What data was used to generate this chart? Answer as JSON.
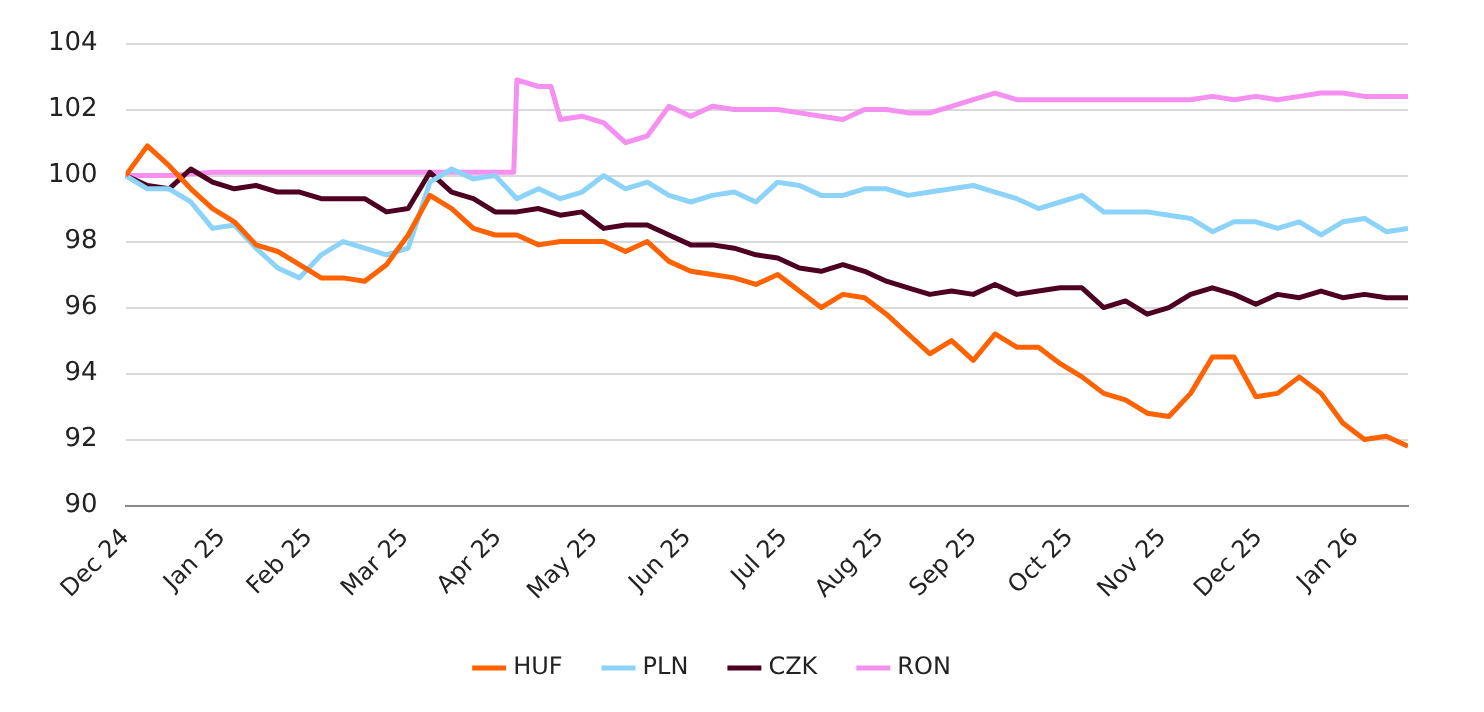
{
  "chart_data": {
    "type": "line",
    "x": [
      "2024-12-31",
      "2025-01-07",
      "2025-01-14",
      "2025-01-21",
      "2025-01-28",
      "2025-02-04",
      "2025-02-11",
      "2025-02-18",
      "2025-02-25",
      "2025-03-04",
      "2025-03-11",
      "2025-03-18",
      "2025-03-25",
      "2025-04-01",
      "2025-04-08",
      "2025-04-15",
      "2025-04-22",
      "2025-04-29",
      "2025-05-06",
      "2025-05-13",
      "2025-05-20",
      "2025-05-27",
      "2025-06-03",
      "2025-06-10",
      "2025-06-17",
      "2025-06-24",
      "2025-07-01",
      "2025-07-08",
      "2025-07-15",
      "2025-07-22",
      "2025-07-29",
      "2025-08-05",
      "2025-08-12",
      "2025-08-19",
      "2025-08-26",
      "2025-09-02",
      "2025-09-09",
      "2025-09-16",
      "2025-09-23",
      "2025-09-30",
      "2025-10-07",
      "2025-10-14",
      "2025-10-21",
      "2025-10-28",
      "2025-11-04",
      "2025-11-11",
      "2025-11-18",
      "2025-11-25",
      "2025-12-02",
      "2025-12-09",
      "2025-12-16",
      "2025-12-23",
      "2025-12-30",
      "2026-01-06",
      "2026-01-13",
      "2026-01-20",
      "2026-01-27",
      "2026-02-03",
      "2026-02-10",
      "2026-02-17"
    ],
    "series": [
      {
        "name": "HUF",
        "color": "#ff6200",
        "values": [
          100.0,
          100.9,
          100.3,
          99.6,
          99.0,
          98.6,
          97.9,
          97.7,
          97.3,
          96.9,
          96.9,
          96.8,
          97.3,
          98.2,
          99.4,
          99.0,
          98.4,
          98.2,
          98.2,
          97.9,
          98.0,
          98.0,
          98.0,
          97.7,
          98.0,
          97.4,
          97.1,
          97.0,
          96.9,
          96.7,
          97.0,
          96.5,
          96.0,
          96.4,
          96.3,
          95.8,
          95.2,
          94.6,
          95.0,
          94.4,
          95.2,
          94.8,
          94.8,
          94.3,
          93.9,
          93.4,
          93.2,
          92.8,
          92.7,
          93.4,
          94.5,
          94.5,
          93.3,
          93.4,
          93.9,
          93.4,
          92.5,
          92.0,
          92.1,
          91.8
        ]
      },
      {
        "name": "PLN",
        "color": "#8cd3fa",
        "values": [
          100.0,
          99.6,
          99.6,
          99.2,
          98.4,
          98.5,
          97.8,
          97.2,
          96.9,
          97.6,
          98.0,
          97.8,
          97.6,
          97.8,
          99.8,
          100.2,
          99.9,
          100.0,
          99.3,
          99.6,
          99.3,
          99.5,
          100.0,
          99.6,
          99.8,
          99.4,
          99.2,
          99.4,
          99.5,
          99.2,
          99.8,
          99.7,
          99.4,
          99.4,
          99.6,
          99.6,
          99.4,
          99.5,
          99.6,
          99.7,
          99.5,
          99.3,
          99.0,
          99.2,
          99.4,
          98.9,
          98.9,
          98.9,
          98.8,
          98.7,
          98.3,
          98.6,
          98.6,
          98.4,
          98.6,
          98.2,
          98.6,
          98.7,
          98.3,
          98.4
        ]
      },
      {
        "name": "CZK",
        "color": "#4d0020",
        "values": [
          100.0,
          99.7,
          99.6,
          100.2,
          99.8,
          99.6,
          99.7,
          99.5,
          99.5,
          99.3,
          99.3,
          99.3,
          98.9,
          99.0,
          100.1,
          99.5,
          99.3,
          98.9,
          98.9,
          99.0,
          98.8,
          98.9,
          98.4,
          98.5,
          98.5,
          98.2,
          97.9,
          97.9,
          97.8,
          97.6,
          97.5,
          97.2,
          97.1,
          97.3,
          97.1,
          96.8,
          96.6,
          96.4,
          96.5,
          96.4,
          96.7,
          96.4,
          96.5,
          96.6,
          96.6,
          96.0,
          96.2,
          95.8,
          96.0,
          96.4,
          96.6,
          96.4,
          96.1,
          96.4,
          96.3,
          96.5,
          96.3,
          96.4,
          96.3,
          96.3
        ]
      },
      {
        "name": "RON",
        "color": "#f58ff0",
        "x": [
          "2024-12-31",
          "2025-01-14",
          "2025-01-28",
          "2025-02-11",
          "2025-02-25",
          "2025-03-11",
          "2025-03-25",
          "2025-04-08",
          "2025-04-22",
          "2025-05-05",
          "2025-05-06",
          "2025-05-13",
          "2025-05-17",
          "2025-05-20",
          "2025-05-27",
          "2025-06-03",
          "2025-06-10",
          "2025-06-17",
          "2025-06-24",
          "2025-07-01",
          "2025-07-08",
          "2025-07-15",
          "2025-07-22",
          "2025-07-29",
          "2025-08-05",
          "2025-08-12",
          "2025-08-19",
          "2025-08-26",
          "2025-09-02",
          "2025-09-09",
          "2025-09-16",
          "2025-09-23",
          "2025-09-30",
          "2025-10-07",
          "2025-10-14",
          "2025-10-21",
          "2025-10-28",
          "2025-11-04",
          "2025-11-11",
          "2025-11-18",
          "2025-11-25",
          "2025-12-02",
          "2025-12-09",
          "2025-12-16",
          "2025-12-23",
          "2025-12-30",
          "2026-01-06",
          "2026-01-13",
          "2026-01-20",
          "2026-01-27",
          "2026-02-03",
          "2026-02-10",
          "2026-02-17"
        ],
        "values": [
          100.0,
          100.0,
          100.1,
          100.1,
          100.1,
          100.1,
          100.1,
          100.1,
          100.1,
          100.1,
          102.9,
          102.7,
          102.7,
          101.7,
          101.8,
          101.6,
          101.0,
          101.2,
          102.1,
          101.8,
          102.1,
          102.0,
          102.0,
          102.0,
          101.9,
          101.8,
          101.7,
          102.0,
          102.0,
          101.9,
          101.9,
          102.1,
          102.3,
          102.5,
          102.3,
          102.3,
          102.3,
          102.3,
          102.3,
          102.3,
          102.3,
          102.3,
          102.3,
          102.4,
          102.3,
          102.4,
          102.3,
          102.4,
          102.5,
          102.5,
          102.4,
          102.4,
          102.4
        ]
      }
    ],
    "xlim": [
      "2024-12-31",
      "2026-02-17"
    ],
    "xticks": [
      {
        "value": "2024-12-31",
        "label": "Dec 24"
      },
      {
        "value": "2025-01-31",
        "label": "Jan 25"
      },
      {
        "value": "2025-02-28",
        "label": "Feb 25"
      },
      {
        "value": "2025-03-31",
        "label": "Mar 25"
      },
      {
        "value": "2025-04-30",
        "label": "Apr 25"
      },
      {
        "value": "2025-05-31",
        "label": "May 25"
      },
      {
        "value": "2025-06-30",
        "label": "Jun 25"
      },
      {
        "value": "2025-07-31",
        "label": "Jul 25"
      },
      {
        "value": "2025-08-31",
        "label": "Aug 25"
      },
      {
        "value": "2025-09-30",
        "label": "Sep 25"
      },
      {
        "value": "2025-10-31",
        "label": "Oct 25"
      },
      {
        "value": "2025-11-30",
        "label": "Nov 25"
      },
      {
        "value": "2025-12-31",
        "label": "Dec 25"
      },
      {
        "value": "2026-01-31",
        "label": "Jan 26"
      }
    ],
    "ylim": [
      90,
      104
    ],
    "yticks": [
      90,
      92,
      94,
      96,
      98,
      100,
      102,
      104
    ],
    "grid": "y",
    "legend": "bottom",
    "marker": "none",
    "line_style": "solid"
  }
}
